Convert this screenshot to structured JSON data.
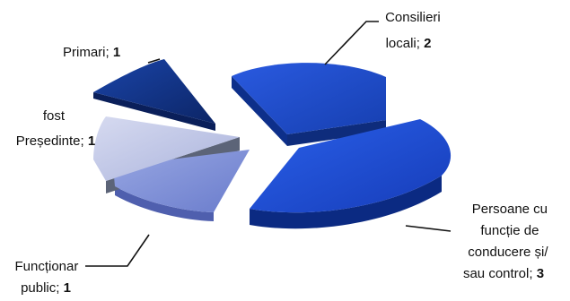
{
  "chart_data": {
    "type": "pie",
    "style": "3d-exploded",
    "slices": [
      {
        "lines": [
          "Consilieri",
          "locali; "
        ],
        "value": 2,
        "color": "#1f4fd0"
      },
      {
        "lines": [
          "Persoane cu",
          "funcție de",
          "conducere și/",
          "sau control; "
        ],
        "value": 3,
        "color": "#1c4fd6"
      },
      {
        "lines": [
          "Funcționar",
          "public; "
        ],
        "value": 1,
        "color": "#8193d8"
      },
      {
        "lines": [
          "fost",
          "Președinte; "
        ],
        "value": 1,
        "color": "#c2c8e8"
      },
      {
        "lines": [
          "Primari; "
        ],
        "value": 1,
        "color": "#12348a"
      }
    ]
  }
}
